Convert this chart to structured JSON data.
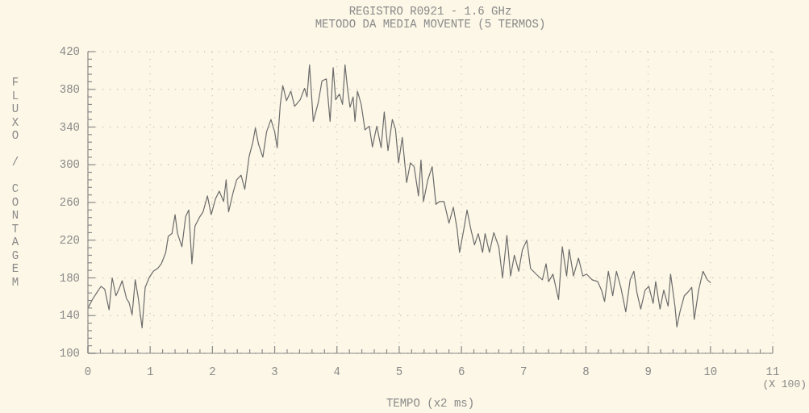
{
  "chart_data": {
    "type": "line",
    "title": "REGISTRO R0921 - 1.6 GHz",
    "subtitle": "METODO DA MEDIA MOVENTE (5 TERMOS)",
    "xlabel": "TEMPO (x2 ms)",
    "ylabel": "FLUXO / CONTAGEM",
    "annotations": [
      "(X 100)"
    ],
    "x": [
      0,
      0.08,
      0.14,
      0.21,
      0.27,
      0.34,
      0.39,
      0.45,
      0.51,
      0.55,
      0.62,
      0.66,
      0.71,
      0.76,
      0.81,
      0.87,
      0.92,
      0.99,
      1.05,
      1.12,
      1.18,
      1.25,
      1.29,
      1.35,
      1.4,
      1.44,
      1.51,
      1.57,
      1.62,
      1.67,
      1.72,
      1.79,
      1.85,
      1.92,
      1.98,
      2.05,
      2.11,
      2.18,
      2.22,
      2.26,
      2.33,
      2.39,
      2.46,
      2.52,
      2.59,
      2.65,
      2.69,
      2.74,
      2.81,
      2.87,
      2.94,
      3,
      3.04,
      3.09,
      3.13,
      3.19,
      3.26,
      3.32,
      3.41,
      3.48,
      3.52,
      3.56,
      3.62,
      3.7,
      3.76,
      3.83,
      3.89,
      3.94,
      3.98,
      4.04,
      4.09,
      4.13,
      4.17,
      4.21,
      4.26,
      4.29,
      4.33,
      4.39,
      4.45,
      4.52,
      4.57,
      4.64,
      4.71,
      4.76,
      4.82,
      4.89,
      4.94,
      4.99,
      5.05,
      5.12,
      5.18,
      5.24,
      5.31,
      5.35,
      5.39,
      5.46,
      5.53,
      5.59,
      5.65,
      5.72,
      5.8,
      5.87,
      5.93,
      5.97,
      6.04,
      6.09,
      6.15,
      6.21,
      6.27,
      6.34,
      6.38,
      6.45,
      6.52,
      6.6,
      6.66,
      6.73,
      6.79,
      6.85,
      6.92,
      6.98,
      7.05,
      7.11,
      7.2,
      7.3,
      7.36,
      7.4,
      7.47,
      7.56,
      7.62,
      7.69,
      7.73,
      7.8,
      7.88,
      7.95,
      8.01,
      8.1,
      8.19,
      8.25,
      8.3,
      8.36,
      8.43,
      8.49,
      8.56,
      8.64,
      8.71,
      8.77,
      8.82,
      8.88,
      8.95,
      9.01,
      9.08,
      9.12,
      9.19,
      9.25,
      9.32,
      9.36,
      9.43,
      9.46,
      9.51,
      9.58,
      9.64,
      9.7,
      9.74,
      9.81,
      9.88,
      9.95,
      10
    ],
    "series": [
      {
        "color": "#6c6c6c",
        "values": [
          148,
          158,
          164,
          171,
          168,
          146,
          180,
          161,
          170,
          177,
          158,
          154,
          141,
          178,
          158,
          127,
          170,
          181,
          187,
          190,
          195,
          207,
          224,
          227,
          247,
          227,
          213,
          245,
          252,
          195,
          235,
          244,
          250,
          267,
          247,
          264,
          272,
          261,
          284,
          250,
          270,
          284,
          289,
          274,
          309,
          324,
          339,
          322,
          308,
          335,
          348,
          335,
          318,
          364,
          384,
          368,
          378,
          362,
          369,
          381,
          372,
          406,
          346,
          366,
          389,
          391,
          346,
          403,
          369,
          375,
          364,
          406,
          381,
          361,
          372,
          346,
          378,
          364,
          337,
          341,
          319,
          341,
          318,
          356,
          315,
          348,
          338,
          302,
          329,
          281,
          302,
          298,
          267,
          305,
          261,
          284,
          298,
          258,
          261,
          261,
          238,
          255,
          232,
          207,
          232,
          252,
          232,
          215,
          227,
          207,
          227,
          207,
          228,
          213,
          180,
          225,
          182,
          204,
          187,
          210,
          220,
          190,
          184,
          178,
          195,
          176,
          184,
          157,
          213,
          182,
          210,
          182,
          201,
          182,
          184,
          178,
          176,
          167,
          155,
          187,
          161,
          187,
          170,
          144,
          178,
          187,
          164,
          147,
          167,
          171,
          153,
          176,
          147,
          167,
          150,
          184,
          150,
          128,
          144,
          161,
          165,
          170,
          136,
          167,
          187,
          178,
          175
        ]
      }
    ],
    "xlim": [
      0,
      11
    ],
    "xticks": [
      0,
      {
        "value": 0.2,
        "label": null
      },
      {
        "value": 0.4,
        "label": null
      },
      {
        "value": 0.6,
        "label": null
      },
      {
        "value": 0.8,
        "label": null
      },
      1,
      {
        "value": 1.2,
        "label": null
      },
      {
        "value": 1.4,
        "label": null
      },
      {
        "value": 1.6,
        "label": null
      },
      {
        "value": 1.8,
        "label": null
      },
      2,
      {
        "value": 2.2,
        "label": null
      },
      {
        "value": 2.4,
        "label": null
      },
      {
        "value": 2.6,
        "label": null
      },
      {
        "value": 2.8,
        "label": null
      },
      3,
      {
        "value": 3.2,
        "label": null
      },
      {
        "value": 3.4,
        "label": null
      },
      {
        "value": 3.6,
        "label": null
      },
      {
        "value": 3.8,
        "label": null
      },
      4,
      {
        "value": 4.2,
        "label": null
      },
      {
        "value": 4.4,
        "label": null
      },
      {
        "value": 4.6,
        "label": null
      },
      {
        "value": 4.8,
        "label": null
      },
      5,
      {
        "value": 5.2,
        "label": null
      },
      {
        "value": 5.4,
        "label": null
      },
      {
        "value": 5.6,
        "label": null
      },
      {
        "value": 5.8,
        "label": null
      },
      6,
      {
        "value": 6.2,
        "label": null
      },
      {
        "value": 6.4,
        "label": null
      },
      {
        "value": 6.6,
        "label": null
      },
      {
        "value": 6.8,
        "label": null
      },
      7,
      {
        "value": 7.2,
        "label": null
      },
      {
        "value": 7.4,
        "label": null
      },
      {
        "value": 7.6,
        "label": null
      },
      {
        "value": 7.8,
        "label": null
      },
      8,
      {
        "value": 8.2,
        "label": null
      },
      {
        "value": 8.4,
        "label": null
      },
      {
        "value": 8.6,
        "label": null
      },
      {
        "value": 8.8,
        "label": null
      },
      9,
      {
        "value": 9.2,
        "label": null
      },
      {
        "value": 9.4,
        "label": null
      },
      {
        "value": 9.6,
        "label": null
      },
      {
        "value": 9.8,
        "label": null
      },
      10,
      {
        "value": 10.2,
        "label": null
      },
      {
        "value": 10.4,
        "label": null
      },
      {
        "value": 10.6,
        "label": null
      },
      {
        "value": 10.8,
        "label": null
      },
      11
    ],
    "ylim": [
      100,
      420
    ],
    "yticks": [
      100,
      {
        "value": 108,
        "label": null
      },
      {
        "value": 116,
        "label": null
      },
      {
        "value": 124,
        "label": null
      },
      {
        "value": 132,
        "label": null
      },
      140,
      {
        "value": 148,
        "label": null
      },
      {
        "value": 156,
        "label": null
      },
      {
        "value": 164,
        "label": null
      },
      {
        "value": 172,
        "label": null
      },
      180,
      {
        "value": 188,
        "label": null
      },
      {
        "value": 196,
        "label": null
      },
      {
        "value": 204,
        "label": null
      },
      {
        "value": 212,
        "label": null
      },
      220,
      {
        "value": 228,
        "label": null
      },
      {
        "value": 236,
        "label": null
      },
      {
        "value": 244,
        "label": null
      },
      {
        "value": 252,
        "label": null
      },
      260,
      {
        "value": 268,
        "label": null
      },
      {
        "value": 276,
        "label": null
      },
      {
        "value": 284,
        "label": null
      },
      {
        "value": 292,
        "label": null
      },
      300,
      {
        "value": 308,
        "label": null
      },
      {
        "value": 316,
        "label": null
      },
      {
        "value": 324,
        "label": null
      },
      {
        "value": 332,
        "label": null
      },
      340,
      {
        "value": 348,
        "label": null
      },
      {
        "value": 356,
        "label": null
      },
      {
        "value": 364,
        "label": null
      },
      {
        "value": 372,
        "label": null
      },
      380,
      {
        "value": 388,
        "label": null
      },
      {
        "value": 396,
        "label": null
      },
      {
        "value": 404,
        "label": null
      },
      {
        "value": 412,
        "label": null
      },
      420
    ],
    "grid": true
  }
}
